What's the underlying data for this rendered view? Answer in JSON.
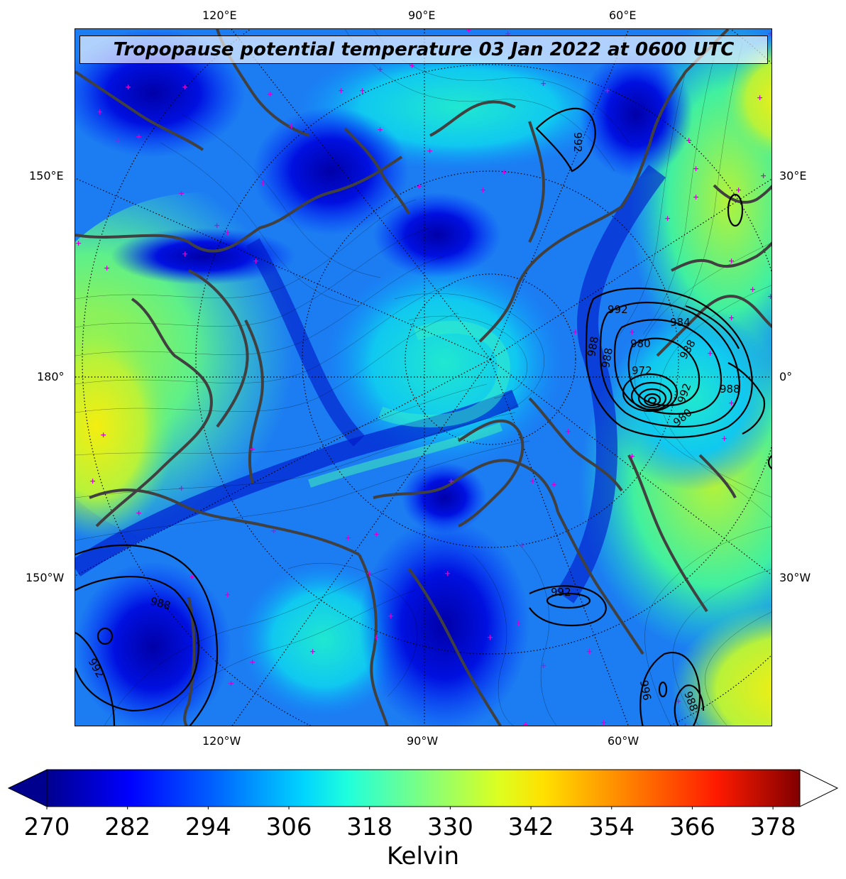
{
  "map": {
    "title": "Tropopause potential temperature 03 Jan 2022 at 0600 UTC",
    "projection": "north-polar-stereographic",
    "top_labels": [
      "120°E",
      "90°E",
      "60°E"
    ],
    "bottom_labels": [
      "120°W",
      "90°W",
      "60°W"
    ],
    "left_labels": [
      "150°E",
      "180°",
      "150°W"
    ],
    "right_labels": [
      "30°E",
      "0°",
      "30°W"
    ],
    "pressure_contours": [
      "992",
      "992",
      "984",
      "988",
      "980",
      "972",
      "988",
      "988",
      "980",
      "988",
      "992",
      "992",
      "992",
      "988",
      "988",
      "996"
    ],
    "colors": {
      "coast": "#404040",
      "markers": "#d400d4",
      "contours": "#000000"
    }
  },
  "colorbar": {
    "ticks": [
      "270",
      "282",
      "294",
      "306",
      "318",
      "330",
      "342",
      "354",
      "366",
      "378"
    ],
    "label": "Kelvin",
    "min": 270,
    "max": 382,
    "extend": "both"
  }
}
